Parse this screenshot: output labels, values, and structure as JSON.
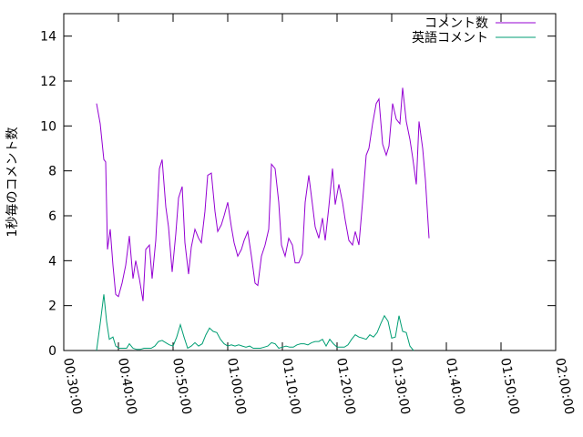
{
  "chart_data": {
    "type": "line",
    "title": "",
    "xlabel": "",
    "ylabel": "1秒毎のコメント数",
    "x_unit": "time (hh:mm:ss)",
    "xlim": [
      "00:30:00",
      "02:00:00"
    ],
    "x_ticks": [
      "00:30:00",
      "00:40:00",
      "00:50:00",
      "01:00:00",
      "01:10:00",
      "01:20:00",
      "01:30:00",
      "01:40:00",
      "01:50:00",
      "02:00:00"
    ],
    "ylim": [
      0,
      15
    ],
    "y_ticks": [
      "0",
      "2",
      "4",
      "6",
      "8",
      "10",
      "12",
      "14"
    ],
    "grid": false,
    "legend_position": "top-right",
    "series": [
      {
        "name": "コメント数",
        "color": "#9400d3",
        "points": [
          [
            "00:36:00",
            11.0
          ],
          [
            "00:36:40",
            10.1
          ],
          [
            "00:37:20",
            8.5
          ],
          [
            "00:37:40",
            8.4
          ],
          [
            "00:38:00",
            4.5
          ],
          [
            "00:38:30",
            5.4
          ],
          [
            "00:39:00",
            3.8
          ],
          [
            "00:39:30",
            2.5
          ],
          [
            "00:40:00",
            2.4
          ],
          [
            "00:40:40",
            3.0
          ],
          [
            "00:41:20",
            3.8
          ],
          [
            "00:42:00",
            5.1
          ],
          [
            "00:42:40",
            3.2
          ],
          [
            "00:43:10",
            4.0
          ],
          [
            "00:43:50",
            3.2
          ],
          [
            "00:44:30",
            2.2
          ],
          [
            "00:45:00",
            4.5
          ],
          [
            "00:45:40",
            4.7
          ],
          [
            "00:46:10",
            3.2
          ],
          [
            "00:46:50",
            4.9
          ],
          [
            "00:47:30",
            8.1
          ],
          [
            "00:48:00",
            8.5
          ],
          [
            "00:48:40",
            6.4
          ],
          [
            "00:49:10",
            5.5
          ],
          [
            "00:49:50",
            3.5
          ],
          [
            "00:50:30",
            5.2
          ],
          [
            "00:51:00",
            6.8
          ],
          [
            "00:51:40",
            7.3
          ],
          [
            "00:52:10",
            4.8
          ],
          [
            "00:52:50",
            3.4
          ],
          [
            "00:53:20",
            4.6
          ],
          [
            "00:54:00",
            5.4
          ],
          [
            "00:54:40",
            5.0
          ],
          [
            "00:55:10",
            4.8
          ],
          [
            "00:55:50",
            6.2
          ],
          [
            "00:56:20",
            7.8
          ],
          [
            "00:57:00",
            7.9
          ],
          [
            "00:57:40",
            6.2
          ],
          [
            "00:58:10",
            5.3
          ],
          [
            "00:58:50",
            5.6
          ],
          [
            "00:59:20",
            6.0
          ],
          [
            "01:00:00",
            6.6
          ],
          [
            "01:00:40",
            5.5
          ],
          [
            "01:01:10",
            4.8
          ],
          [
            "01:01:50",
            4.2
          ],
          [
            "01:02:30",
            4.5
          ],
          [
            "01:03:00",
            4.9
          ],
          [
            "01:03:40",
            5.3
          ],
          [
            "01:04:20",
            4.2
          ],
          [
            "01:05:00",
            3.0
          ],
          [
            "01:05:30",
            2.9
          ],
          [
            "01:06:10",
            4.2
          ],
          [
            "01:06:50",
            4.7
          ],
          [
            "01:07:30",
            5.4
          ],
          [
            "01:08:00",
            8.3
          ],
          [
            "01:08:40",
            8.1
          ],
          [
            "01:09:20",
            6.6
          ],
          [
            "01:09:50",
            4.7
          ],
          [
            "01:10:30",
            4.2
          ],
          [
            "01:11:10",
            5.0
          ],
          [
            "01:11:50",
            4.7
          ],
          [
            "01:12:20",
            3.9
          ],
          [
            "01:13:00",
            3.9
          ],
          [
            "01:13:40",
            4.3
          ],
          [
            "01:14:10",
            6.6
          ],
          [
            "01:14:50",
            7.8
          ],
          [
            "01:15:30",
            6.5
          ],
          [
            "01:16:00",
            5.5
          ],
          [
            "01:16:40",
            5.0
          ],
          [
            "01:17:20",
            5.9
          ],
          [
            "01:17:50",
            4.9
          ],
          [
            "01:18:30",
            6.4
          ],
          [
            "01:19:10",
            8.1
          ],
          [
            "01:19:40",
            6.5
          ],
          [
            "01:20:20",
            7.4
          ],
          [
            "01:21:00",
            6.6
          ],
          [
            "01:21:30",
            5.8
          ],
          [
            "01:22:10",
            4.9
          ],
          [
            "01:22:50",
            4.7
          ],
          [
            "01:23:20",
            5.3
          ],
          [
            "01:24:00",
            4.7
          ],
          [
            "01:24:40",
            6.6
          ],
          [
            "01:25:20",
            8.7
          ],
          [
            "01:25:50",
            9.0
          ],
          [
            "01:26:30",
            10.1
          ],
          [
            "01:27:10",
            11.0
          ],
          [
            "01:27:40",
            11.2
          ],
          [
            "01:28:20",
            9.2
          ],
          [
            "01:29:00",
            8.7
          ],
          [
            "01:29:30",
            9.1
          ],
          [
            "01:30:10",
            11.0
          ],
          [
            "01:30:50",
            10.3
          ],
          [
            "01:31:30",
            10.1
          ],
          [
            "01:32:00",
            11.7
          ],
          [
            "01:32:40",
            10.2
          ],
          [
            "01:33:20",
            9.4
          ],
          [
            "01:33:50",
            8.6
          ],
          [
            "01:34:30",
            7.4
          ],
          [
            "01:35:00",
            10.2
          ],
          [
            "01:35:40",
            9.0
          ],
          [
            "01:36:10",
            7.6
          ],
          [
            "01:36:50",
            5.0
          ]
        ]
      },
      {
        "name": "英語コメント",
        "color": "#009e73",
        "points": [
          [
            "00:36:00",
            0.0
          ],
          [
            "00:36:40",
            1.2
          ],
          [
            "00:37:20",
            2.5
          ],
          [
            "00:37:50",
            1.3
          ],
          [
            "00:38:20",
            0.5
          ],
          [
            "00:39:00",
            0.6
          ],
          [
            "00:39:30",
            0.2
          ],
          [
            "00:40:10",
            0.1
          ],
          [
            "00:40:50",
            0.1
          ],
          [
            "00:41:30",
            0.1
          ],
          [
            "00:42:00",
            0.3
          ],
          [
            "00:42:40",
            0.1
          ],
          [
            "00:43:20",
            0.05
          ],
          [
            "00:44:00",
            0.05
          ],
          [
            "00:44:40",
            0.1
          ],
          [
            "00:45:20",
            0.1
          ],
          [
            "00:46:00",
            0.1
          ],
          [
            "00:46:40",
            0.2
          ],
          [
            "00:47:20",
            0.4
          ],
          [
            "00:48:00",
            0.45
          ],
          [
            "00:48:40",
            0.35
          ],
          [
            "00:49:20",
            0.25
          ],
          [
            "00:50:00",
            0.2
          ],
          [
            "00:50:40",
            0.6
          ],
          [
            "00:51:20",
            1.15
          ],
          [
            "00:52:00",
            0.6
          ],
          [
            "00:52:40",
            0.1
          ],
          [
            "00:53:20",
            0.2
          ],
          [
            "00:54:00",
            0.35
          ],
          [
            "00:54:40",
            0.2
          ],
          [
            "00:55:20",
            0.3
          ],
          [
            "00:56:00",
            0.7
          ],
          [
            "00:56:40",
            1.0
          ],
          [
            "00:57:20",
            0.85
          ],
          [
            "00:58:00",
            0.8
          ],
          [
            "00:58:40",
            0.5
          ],
          [
            "00:59:20",
            0.3
          ],
          [
            "01:00:00",
            0.2
          ],
          [
            "01:00:40",
            0.25
          ],
          [
            "01:01:20",
            0.2
          ],
          [
            "01:02:00",
            0.25
          ],
          [
            "01:02:40",
            0.2
          ],
          [
            "01:03:20",
            0.15
          ],
          [
            "01:04:00",
            0.2
          ],
          [
            "01:04:40",
            0.1
          ],
          [
            "01:05:20",
            0.1
          ],
          [
            "01:06:00",
            0.1
          ],
          [
            "01:06:40",
            0.15
          ],
          [
            "01:07:20",
            0.2
          ],
          [
            "01:08:00",
            0.35
          ],
          [
            "01:08:40",
            0.3
          ],
          [
            "01:09:20",
            0.1
          ],
          [
            "01:10:00",
            0.15
          ],
          [
            "01:10:40",
            0.2
          ],
          [
            "01:11:20",
            0.15
          ],
          [
            "01:12:00",
            0.15
          ],
          [
            "01:12:40",
            0.25
          ],
          [
            "01:13:20",
            0.3
          ],
          [
            "01:14:00",
            0.3
          ],
          [
            "01:14:40",
            0.25
          ],
          [
            "01:15:20",
            0.35
          ],
          [
            "01:16:00",
            0.4
          ],
          [
            "01:16:40",
            0.4
          ],
          [
            "01:17:20",
            0.5
          ],
          [
            "01:18:00",
            0.2
          ],
          [
            "01:18:40",
            0.5
          ],
          [
            "01:19:20",
            0.3
          ],
          [
            "01:20:00",
            0.15
          ],
          [
            "01:20:40",
            0.15
          ],
          [
            "01:21:20",
            0.15
          ],
          [
            "01:22:00",
            0.25
          ],
          [
            "01:22:40",
            0.5
          ],
          [
            "01:23:20",
            0.7
          ],
          [
            "01:24:00",
            0.6
          ],
          [
            "01:24:40",
            0.55
          ],
          [
            "01:25:20",
            0.5
          ],
          [
            "01:26:00",
            0.7
          ],
          [
            "01:26:40",
            0.6
          ],
          [
            "01:27:20",
            0.8
          ],
          [
            "01:28:00",
            1.2
          ],
          [
            "01:28:40",
            1.55
          ],
          [
            "01:29:20",
            1.3
          ],
          [
            "01:30:00",
            0.55
          ],
          [
            "01:30:40",
            0.6
          ],
          [
            "01:31:20",
            1.55
          ],
          [
            "01:32:00",
            0.85
          ],
          [
            "01:32:40",
            0.8
          ],
          [
            "01:33:20",
            0.2
          ],
          [
            "01:34:00",
            0.0
          ]
        ]
      }
    ]
  }
}
